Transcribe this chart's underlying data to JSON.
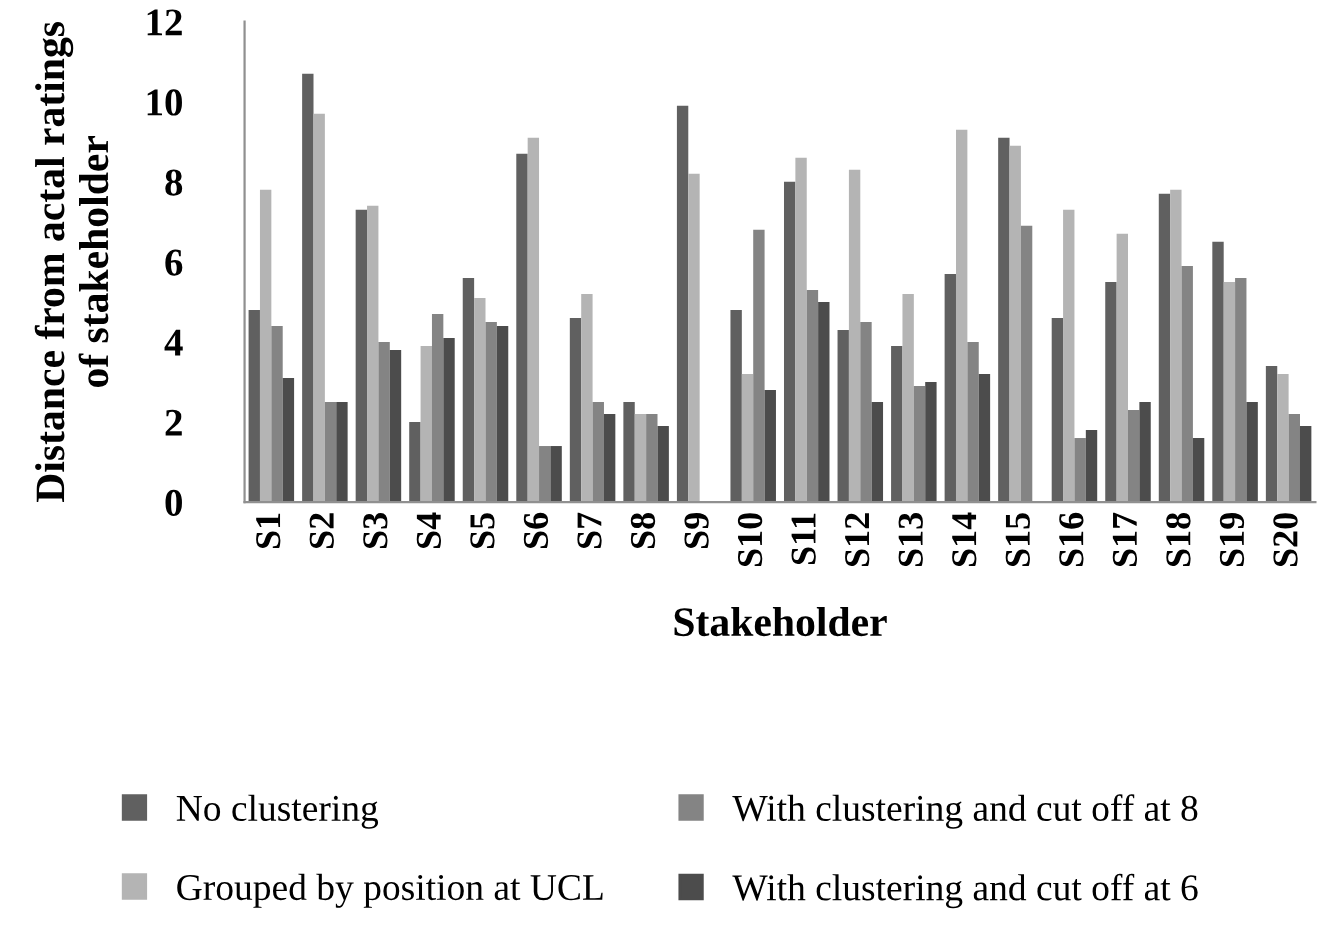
{
  "chart_data": {
    "type": "bar",
    "xlabel": "Stakeholder",
    "ylabel": "Distance from actal ratings of stakeholder",
    "categories": [
      "S1",
      "S2",
      "S3",
      "S4",
      "S5",
      "S6",
      "S7",
      "S8",
      "S9",
      "S10",
      "S11",
      "S12",
      "S13",
      "S14",
      "S15",
      "S16",
      "S17",
      "S18",
      "S19",
      "S20"
    ],
    "series": [
      {
        "name": "No clustering",
        "color": "#606060",
        "values": [
          4.8,
          10.7,
          7.3,
          2.0,
          5.6,
          8.7,
          4.6,
          2.5,
          9.9,
          4.8,
          8.0,
          4.3,
          3.9,
          5.7,
          9.1,
          4.6,
          5.5,
          7.7,
          6.5,
          3.4
        ]
      },
      {
        "name": "Grouped by position at UCL",
        "color": "#b4b4b4",
        "values": [
          7.8,
          9.7,
          7.4,
          3.9,
          5.1,
          9.1,
          5.2,
          2.2,
          8.2,
          3.2,
          8.6,
          8.3,
          5.2,
          9.3,
          8.9,
          7.3,
          6.7,
          7.8,
          5.5,
          3.2
        ]
      },
      {
        "name": "With clustering and cut off at 8",
        "color": "#848484",
        "values": [
          4.4,
          2.5,
          4.0,
          4.7,
          4.5,
          1.4,
          2.5,
          2.2,
          null,
          6.8,
          5.3,
          4.5,
          2.9,
          4.0,
          6.9,
          1.6,
          2.3,
          5.9,
          5.6,
          2.2
        ]
      },
      {
        "name": "With clustering and cut off at 6",
        "color": "#4c4c4c",
        "values": [
          3.1,
          2.5,
          3.8,
          4.1,
          4.4,
          1.4,
          2.2,
          1.9,
          null,
          2.8,
          5.0,
          2.5,
          3.0,
          3.2,
          null,
          1.8,
          2.5,
          1.6,
          2.5,
          1.9
        ]
      }
    ],
    "ylim": [
      0,
      12
    ],
    "yticks": [
      0,
      2,
      4,
      6,
      8,
      10,
      12
    ],
    "grid": false,
    "legend": "bottom"
  }
}
